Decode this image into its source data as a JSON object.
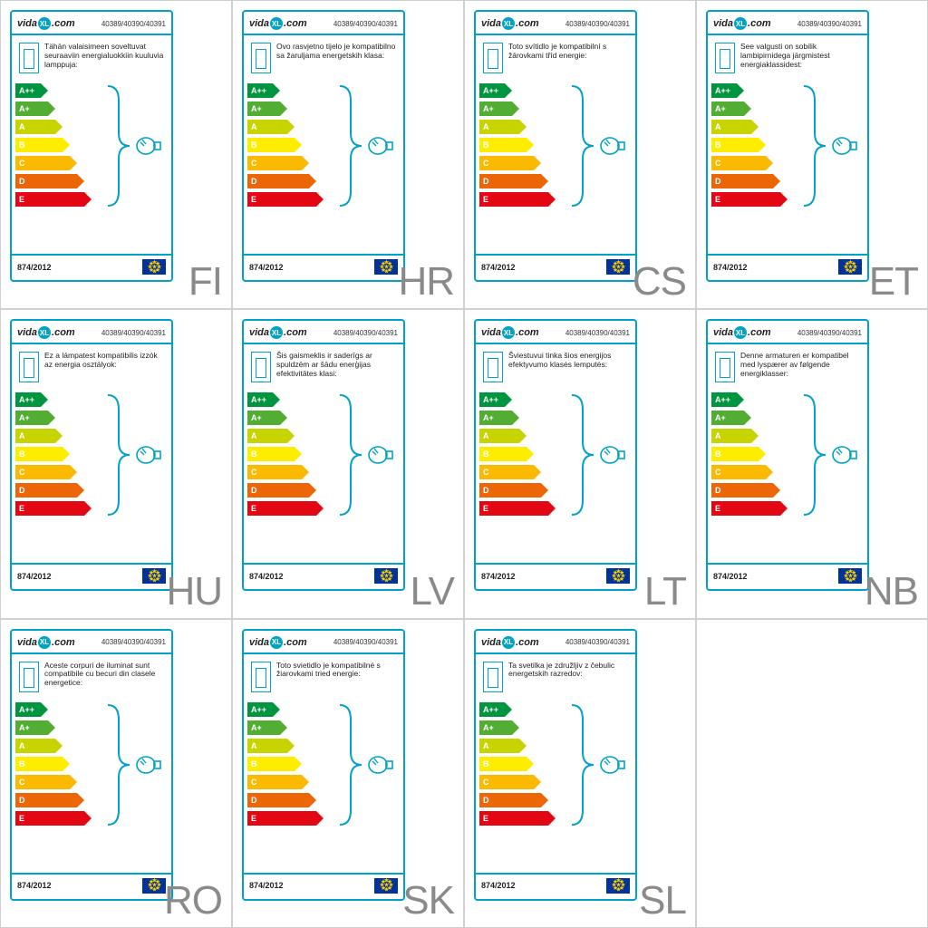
{
  "brand_text_prefix": "vida",
  "brand_xl": "XL",
  "brand_text_suffix": ".com",
  "model_number": "40389/40390/40391",
  "regulation": "874/2012",
  "lang_code_color": "#8a8a8a",
  "lang_code_fontsize": 44,
  "card_border_color": "#00a3c7",
  "background_color": "#ffffff",
  "brace_color": "#00a3c7",
  "bulb_stroke_color": "#00a3c7",
  "energy_classes": [
    {
      "letter": "A++",
      "color": "#009640",
      "width": 28
    },
    {
      "letter": "A+",
      "color": "#52ae32",
      "width": 36
    },
    {
      "letter": "A",
      "color": "#c8d400",
      "width": 44
    },
    {
      "letter": "B",
      "color": "#ffed00",
      "width": 52
    },
    {
      "letter": "C",
      "color": "#fbba00",
      "width": 60
    },
    {
      "letter": "D",
      "color": "#ec6608",
      "width": 68
    },
    {
      "letter": "E",
      "color": "#e30613",
      "width": 76
    }
  ],
  "labels": [
    {
      "code": "FI",
      "text": "Tähän valaisimeen soveltuvat seuraaviin energialuokkiin kuuluvia lamppuja:"
    },
    {
      "code": "HR",
      "text": "Ovo rasvjetno tijelo je kompatibilno sa žaruljama energetskih klasa:"
    },
    {
      "code": "CS",
      "text": "Toto svítidlo je kompatibilní s žárovkami tříd energie:"
    },
    {
      "code": "ET",
      "text": "See valgusti on sobilik lambipirnidega järgmistest energiaklassidest:"
    },
    {
      "code": "HU",
      "text": "Ez a lámpatest kompatibilis izzók az energia osztályok:"
    },
    {
      "code": "LV",
      "text": "Šis gaismeklis ir saderīgs ar spuldzēm ar šādu enerģijas efektivitātes klasi:"
    },
    {
      "code": "LT",
      "text": "Šviestuvui tinka šios energijos efektyvumo klasės lemputės:"
    },
    {
      "code": "NB",
      "text": "Denne armaturen er kompatibel med lyspærer av følgende energiklasser:"
    },
    {
      "code": "RO",
      "text": "Aceste corpuri de iluminat sunt compatibile cu becuri din clasele energetice:"
    },
    {
      "code": "SK",
      "text": "Toto svietidlo je kompatibilné s žiarovkami tried energie:"
    },
    {
      "code": "SL",
      "text": "Ta svetilka je združljiv z čebulic energetskih razredov:"
    }
  ]
}
